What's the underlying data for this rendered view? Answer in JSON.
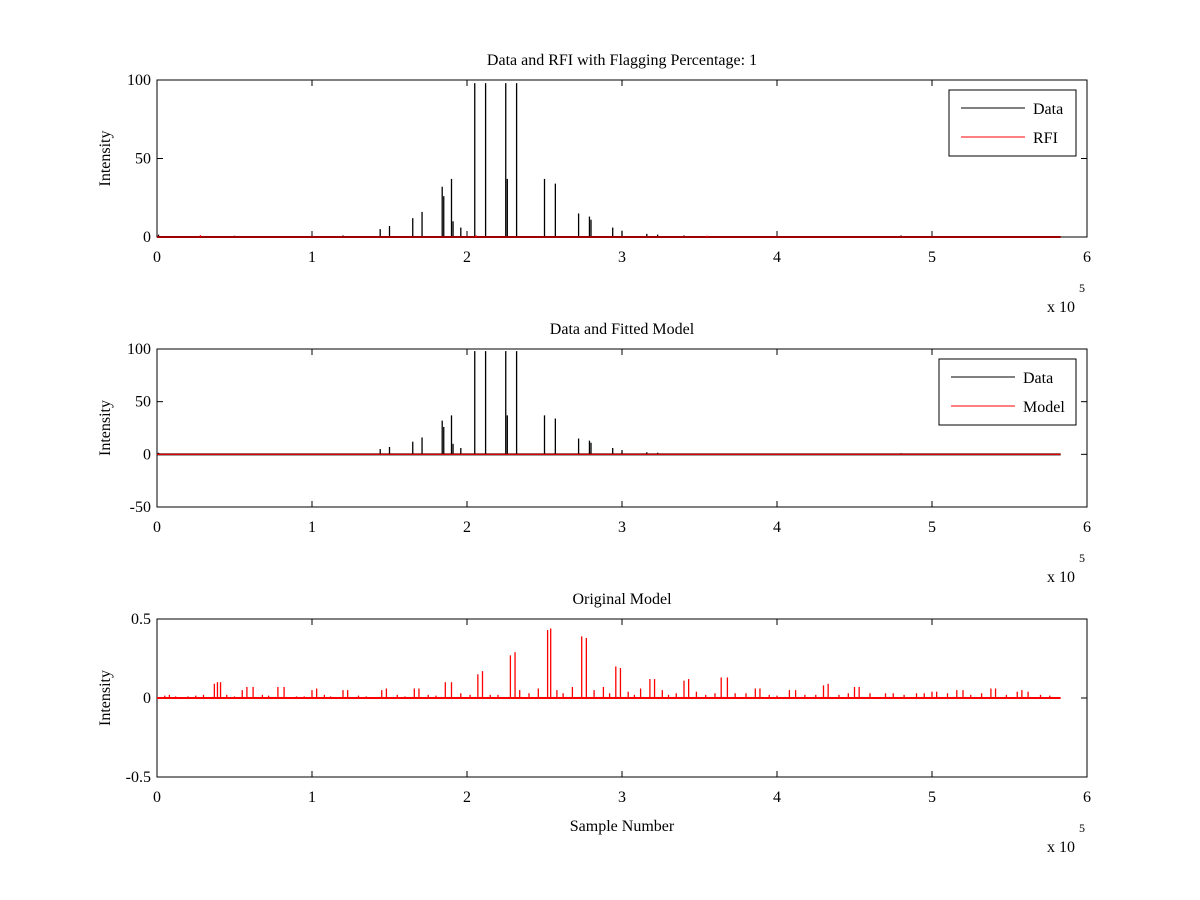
{
  "chart_data": [
    {
      "type": "line",
      "title": "Data and RFI with Flagging Percentage: 1",
      "xlabel": "",
      "ylabel": "Intensity",
      "xlim": [
        0,
        6
      ],
      "ylim": [
        0,
        100
      ],
      "x_multiplier": "x 10",
      "x_multiplier_exp": "5",
      "xticks": [
        "0",
        "1",
        "2",
        "3",
        "4",
        "5",
        "6"
      ],
      "yticks": [
        {
          "value": 0,
          "label": "0"
        },
        {
          "value": 50,
          "label": "50"
        },
        {
          "value": 100,
          "label": "100"
        }
      ],
      "legend_position": "top-right",
      "series": [
        {
          "name": "Data",
          "color": "#000000",
          "spikes": [
            [
              0.01,
              1.5
            ],
            [
              0.5,
              0.8
            ],
            [
              1.0,
              0.8
            ],
            [
              1.2,
              1.0
            ],
            [
              1.44,
              5
            ],
            [
              1.5,
              7
            ],
            [
              1.65,
              12
            ],
            [
              1.71,
              16
            ],
            [
              1.84,
              32
            ],
            [
              1.85,
              26
            ],
            [
              1.9,
              37
            ],
            [
              1.91,
              10
            ],
            [
              1.96,
              6
            ],
            [
              2.05,
              98
            ],
            [
              2.12,
              98
            ],
            [
              2.25,
              98
            ],
            [
              2.26,
              37
            ],
            [
              2.32,
              98
            ],
            [
              2.5,
              37
            ],
            [
              2.57,
              34
            ],
            [
              2.72,
              15
            ],
            [
              2.79,
              13
            ],
            [
              2.8,
              11
            ],
            [
              2.94,
              6
            ],
            [
              3.0,
              4
            ],
            [
              3.16,
              2
            ],
            [
              3.23,
              1.5
            ],
            [
              3.4,
              1
            ],
            [
              4.8,
              1
            ]
          ]
        },
        {
          "name": "RFI",
          "color": "#ff0000",
          "spikes": [
            [
              0.28,
              1.2
            ],
            [
              2.06,
              1.0
            ],
            [
              3.55,
              0.8
            ]
          ]
        }
      ],
      "baseline": 0,
      "x_end": 5.83
    },
    {
      "type": "line",
      "title": "Data and Fitted Model",
      "xlabel": "",
      "ylabel": "Intensity",
      "xlim": [
        0,
        6
      ],
      "ylim": [
        -50,
        100
      ],
      "x_multiplier": "x 10",
      "x_multiplier_exp": "5",
      "xticks": [
        "0",
        "1",
        "2",
        "3",
        "4",
        "5",
        "6"
      ],
      "yticks": [
        {
          "value": -50,
          "label": "-50"
        },
        {
          "value": 0,
          "label": "0"
        },
        {
          "value": 50,
          "label": "50"
        },
        {
          "value": 100,
          "label": "100"
        }
      ],
      "legend_position": "top-right",
      "series": [
        {
          "name": "Data",
          "color": "#000000",
          "spikes": [
            [
              0.01,
              1.5
            ],
            [
              1.44,
              5
            ],
            [
              1.5,
              7
            ],
            [
              1.65,
              12
            ],
            [
              1.71,
              16
            ],
            [
              1.84,
              32
            ],
            [
              1.85,
              26
            ],
            [
              1.9,
              37
            ],
            [
              1.91,
              10
            ],
            [
              1.96,
              6
            ],
            [
              2.05,
              98
            ],
            [
              2.12,
              98
            ],
            [
              2.25,
              98
            ],
            [
              2.26,
              37
            ],
            [
              2.32,
              98
            ],
            [
              2.5,
              37
            ],
            [
              2.57,
              34
            ],
            [
              2.72,
              15
            ],
            [
              2.79,
              13
            ],
            [
              2.8,
              11
            ],
            [
              2.94,
              6
            ],
            [
              3.0,
              4
            ],
            [
              3.16,
              2
            ],
            [
              3.23,
              1.5
            ],
            [
              4.8,
              1
            ]
          ]
        },
        {
          "name": "Model",
          "color": "#ff0000",
          "spikes": []
        }
      ],
      "baseline": 0,
      "x_end": 5.83
    },
    {
      "type": "line",
      "title": "Original Model",
      "xlabel": "Sample Number",
      "ylabel": "Intensity",
      "xlim": [
        0,
        6
      ],
      "ylim": [
        -0.5,
        0.5
      ],
      "x_multiplier": "x 10",
      "x_multiplier_exp": "5",
      "xticks": [
        "0",
        "1",
        "2",
        "3",
        "4",
        "5",
        "6"
      ],
      "yticks": [
        {
          "value": -0.5,
          "label": "-0.5"
        },
        {
          "value": 0,
          "label": "0"
        },
        {
          "value": 0.5,
          "label": "0.5"
        }
      ],
      "legend_position": "none",
      "series": [
        {
          "name": "",
          "color": "#ff0000",
          "spikes": [
            [
              0.05,
              0.015
            ],
            [
              0.08,
              0.02
            ],
            [
              0.12,
              0.01
            ],
            [
              0.2,
              0.01
            ],
            [
              0.25,
              0.015
            ],
            [
              0.3,
              0.02
            ],
            [
              0.37,
              0.09
            ],
            [
              0.39,
              0.1
            ],
            [
              0.41,
              0.1
            ],
            [
              0.45,
              0.02
            ],
            [
              0.5,
              0.01
            ],
            [
              0.55,
              0.05
            ],
            [
              0.58,
              0.07
            ],
            [
              0.62,
              0.07
            ],
            [
              0.68,
              0.02
            ],
            [
              0.72,
              0.015
            ],
            [
              0.78,
              0.07
            ],
            [
              0.82,
              0.07
            ],
            [
              0.9,
              0.01
            ],
            [
              0.95,
              0.01
            ],
            [
              1.0,
              0.05
            ],
            [
              1.03,
              0.06
            ],
            [
              1.08,
              0.02
            ],
            [
              1.12,
              0.01
            ],
            [
              1.2,
              0.05
            ],
            [
              1.23,
              0.05
            ],
            [
              1.3,
              0.015
            ],
            [
              1.35,
              0.01
            ],
            [
              1.45,
              0.05
            ],
            [
              1.48,
              0.06
            ],
            [
              1.55,
              0.02
            ],
            [
              1.6,
              0.01
            ],
            [
              1.66,
              0.06
            ],
            [
              1.69,
              0.06
            ],
            [
              1.75,
              0.02
            ],
            [
              1.8,
              0.015
            ],
            [
              1.86,
              0.1
            ],
            [
              1.9,
              0.1
            ],
            [
              1.96,
              0.03
            ],
            [
              2.02,
              0.02
            ],
            [
              2.07,
              0.15
            ],
            [
              2.1,
              0.17
            ],
            [
              2.15,
              0.02
            ],
            [
              2.2,
              0.02
            ],
            [
              2.28,
              0.27
            ],
            [
              2.31,
              0.29
            ],
            [
              2.34,
              0.05
            ],
            [
              2.4,
              0.03
            ],
            [
              2.46,
              0.06
            ],
            [
              2.52,
              0.43
            ],
            [
              2.54,
              0.44
            ],
            [
              2.58,
              0.05
            ],
            [
              2.62,
              0.03
            ],
            [
              2.68,
              0.07
            ],
            [
              2.74,
              0.39
            ],
            [
              2.77,
              0.38
            ],
            [
              2.82,
              0.05
            ],
            [
              2.88,
              0.07
            ],
            [
              2.92,
              0.03
            ],
            [
              2.96,
              0.2
            ],
            [
              2.99,
              0.19
            ],
            [
              3.04,
              0.04
            ],
            [
              3.08,
              0.02
            ],
            [
              3.12,
              0.06
            ],
            [
              3.18,
              0.12
            ],
            [
              3.21,
              0.12
            ],
            [
              3.26,
              0.05
            ],
            [
              3.3,
              0.02
            ],
            [
              3.35,
              0.03
            ],
            [
              3.4,
              0.11
            ],
            [
              3.43,
              0.12
            ],
            [
              3.48,
              0.04
            ],
            [
              3.54,
              0.02
            ],
            [
              3.6,
              0.03
            ],
            [
              3.64,
              0.13
            ],
            [
              3.68,
              0.13
            ],
            [
              3.73,
              0.03
            ],
            [
              3.8,
              0.03
            ],
            [
              3.86,
              0.06
            ],
            [
              3.89,
              0.06
            ],
            [
              3.95,
              0.02
            ],
            [
              4.0,
              0.015
            ],
            [
              4.08,
              0.05
            ],
            [
              4.12,
              0.05
            ],
            [
              4.18,
              0.02
            ],
            [
              4.25,
              0.02
            ],
            [
              4.3,
              0.08
            ],
            [
              4.33,
              0.09
            ],
            [
              4.4,
              0.02
            ],
            [
              4.46,
              0.03
            ],
            [
              4.5,
              0.07
            ],
            [
              4.53,
              0.07
            ],
            [
              4.6,
              0.03
            ],
            [
              4.7,
              0.03
            ],
            [
              4.75,
              0.03
            ],
            [
              4.82,
              0.02
            ],
            [
              4.9,
              0.03
            ],
            [
              4.95,
              0.03
            ],
            [
              5.0,
              0.04
            ],
            [
              5.03,
              0.04
            ],
            [
              5.1,
              0.03
            ],
            [
              5.16,
              0.05
            ],
            [
              5.2,
              0.05
            ],
            [
              5.25,
              0.02
            ],
            [
              5.32,
              0.03
            ],
            [
              5.38,
              0.06
            ],
            [
              5.41,
              0.06
            ],
            [
              5.48,
              0.02
            ],
            [
              5.55,
              0.04
            ],
            [
              5.58,
              0.05
            ],
            [
              5.62,
              0.04
            ],
            [
              5.7,
              0.02
            ],
            [
              5.76,
              0.015
            ]
          ]
        }
      ],
      "baseline": 0,
      "x_end": 5.83
    }
  ]
}
